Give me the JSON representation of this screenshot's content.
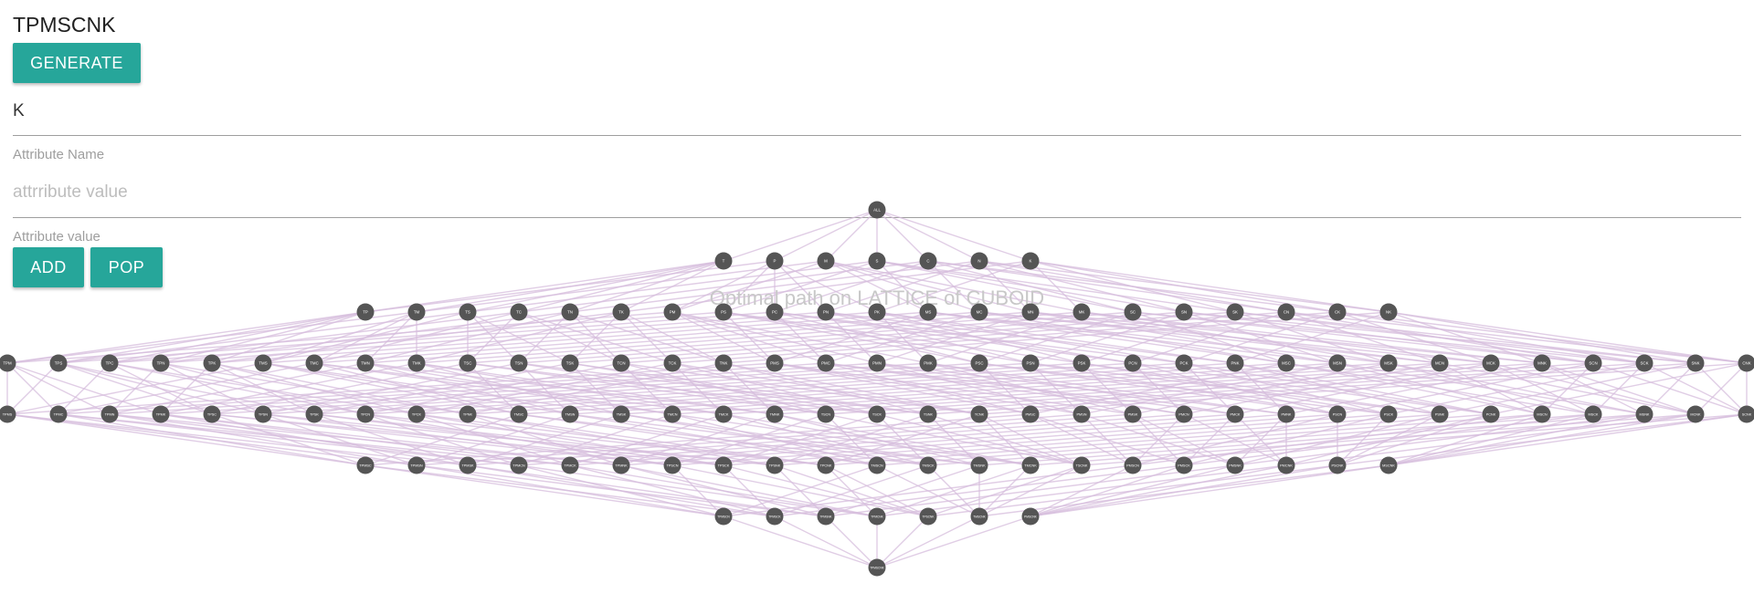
{
  "app": {
    "title": "TPMSCNK"
  },
  "toolbar": {
    "generate_label": "GENERATE"
  },
  "k_field": {
    "value": "K",
    "label": "Attribute Name"
  },
  "value_field": {
    "placeholder": "attrribute value",
    "label": "Attribute value"
  },
  "actions": {
    "add_label": "ADD",
    "pop_label": "POP"
  },
  "lattice": {
    "caption": "Optimal path on LATTICE of CUBOID",
    "colors": {
      "edge": "#d6bcdc",
      "node": "#555555",
      "node_text": "#ffffff"
    },
    "levels": [
      [
        "ALL"
      ],
      [
        "T",
        "P",
        "M",
        "S",
        "C",
        "N",
        "K"
      ],
      [
        "TP",
        "TM",
        "TS",
        "TC",
        "TN",
        "TK",
        "PM",
        "PS",
        "PC",
        "PN",
        "PK",
        "MS",
        "MC",
        "MN",
        "MK",
        "SC",
        "SN",
        "SK",
        "CN",
        "CK",
        "NK"
      ],
      [
        "TPM",
        "TPS",
        "TPC",
        "TPN",
        "TPK",
        "TMS",
        "TMC",
        "TMN",
        "TMK",
        "TSC",
        "TSN",
        "TSK",
        "TCN",
        "TCK",
        "TNK",
        "PMS",
        "PMC",
        "PMN",
        "PMK",
        "PSC",
        "PSN",
        "PSK",
        "PCN",
        "PCK",
        "PNK",
        "MSC",
        "MSN",
        "MSK",
        "MCN",
        "MCK",
        "MNK",
        "SCN",
        "SCK",
        "SNK",
        "CNK"
      ],
      [
        "TPMS",
        "TPMC",
        "TPMN",
        "TPMK",
        "TPSC",
        "TPSN",
        "TPSK",
        "TPCN",
        "TPCK",
        "TPNK",
        "TMSC",
        "TMSN",
        "TMSK",
        "TMCN",
        "TMCK",
        "TMNK",
        "TSCN",
        "TSCK",
        "TSNK",
        "TCNK",
        "PMSC",
        "PMSN",
        "PMSK",
        "PMCN",
        "PMCK",
        "PMNK",
        "PSCN",
        "PSCK",
        "PSNK",
        "PCNK",
        "MSCN",
        "MSCK",
        "MSNK",
        "MCNK",
        "SCNK"
      ],
      [
        "TPMSC",
        "TPMSN",
        "TPMSK",
        "TPMCN",
        "TPMCK",
        "TPMNK",
        "TPSCN",
        "TPSCK",
        "TPSNK",
        "TPCNK",
        "TMSCN",
        "TMSCK",
        "TMSNK",
        "TMCNK",
        "TSCNK",
        "PMSCN",
        "PMSCK",
        "PMSNK",
        "PMCNK",
        "PSCNK",
        "MSCNK"
      ],
      [
        "TPMSCN",
        "TPMSCK",
        "TPMSNK",
        "TPMCNK",
        "TPSCNK",
        "TMSCNK",
        "PMSCNK"
      ],
      [
        "TPMSCNK"
      ]
    ]
  }
}
